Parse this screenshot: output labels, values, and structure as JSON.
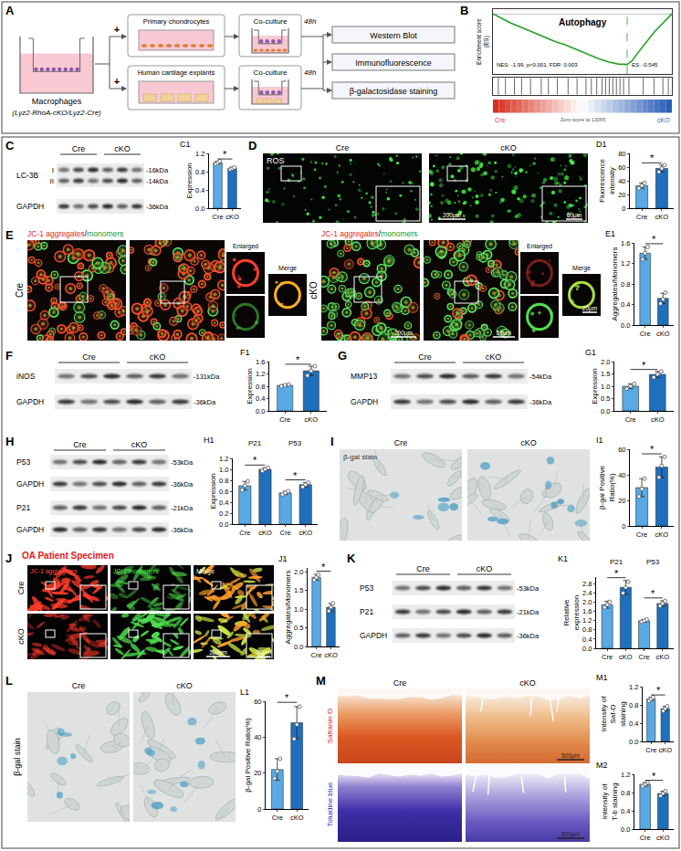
{
  "figure": {
    "A": {
      "letter": "A",
      "source": "Macrophages",
      "genotype": "(Lyz2-RhoA-cKO/Lyz2-Cre)",
      "plus": "+",
      "targets": [
        "Primary chondrocytes",
        "Human cartilage explants"
      ],
      "coculture": "Co-culture",
      "time": "48h",
      "assays": [
        "Western Blot",
        "Immunofluorescence",
        "β-galactosidase staining"
      ]
    },
    "blots": {
      "C": {
        "letter": "C",
        "groups": [
          "Cre",
          "cKO"
        ],
        "rows": [
          {
            "name": "LC-3B",
            "bands": [
              "I",
              "II"
            ],
            "kda": [
              "-16kDa",
              "-14kDa"
            ]
          },
          {
            "name": "GAPDH",
            "kda": [
              "-36kDa"
            ]
          }
        ]
      },
      "F": {
        "letter": "F",
        "groups": [
          "Cre",
          "cKO"
        ],
        "rows": [
          {
            "name": "iNOS",
            "kda": [
              "-131kDa"
            ]
          },
          {
            "name": "GAPDH",
            "kda": [
              "-36kDa"
            ]
          }
        ]
      },
      "G": {
        "letter": "G",
        "groups": [
          "Cre",
          "cKO"
        ],
        "rows": [
          {
            "name": "MMP13",
            "kda": [
              "-54kDa"
            ]
          },
          {
            "name": "GAPDH",
            "kda": [
              "-36kDa"
            ]
          }
        ]
      },
      "H": {
        "letter": "H",
        "groups": [
          "Cre",
          "cKO"
        ],
        "rows": [
          {
            "name": "P53",
            "kda": [
              "-53kDa"
            ]
          },
          {
            "name": "GAPDH",
            "kda": [
              "-36kDa"
            ]
          },
          {
            "name": "P21",
            "kda": [
              "-21kDa"
            ]
          },
          {
            "name": "GAPDH",
            "kda": [
              "-36kDa"
            ]
          }
        ]
      },
      "K": {
        "letter": "K",
        "groups": [
          "Cre",
          "cKO"
        ],
        "rows": [
          {
            "name": "P53",
            "kda": [
              "-53kDa"
            ]
          },
          {
            "name": "P21",
            "kda": [
              "-21kDa"
            ]
          },
          {
            "name": "GAPDH",
            "kda": [
              "-36kDa"
            ]
          }
        ]
      }
    },
    "images": {
      "D": {
        "letter": "D",
        "groups": [
          "Cre",
          "cKO"
        ],
        "stain": "ROS",
        "scale_bars": [
          "200μm",
          "60μm"
        ]
      },
      "E": {
        "letter": "E",
        "groups": [
          "Cre",
          "cKO"
        ],
        "title": [
          "JC-1 aggregates",
          "/",
          "monomers"
        ],
        "enlarged": "Enlarged",
        "merge": "Merge",
        "scale_bars": [
          "100μm",
          "50μm",
          "20μm"
        ]
      },
      "I": {
        "letter": "I",
        "groups": [
          "Cre",
          "cKO"
        ],
        "stain": "β-gal stain"
      },
      "J": {
        "letter": "J",
        "title": "OA Patient Specimen",
        "rows": [
          "Cre",
          "cKO"
        ],
        "columns": [
          "JC-1 aggregates",
          "JC-1 monomers",
          "Merge"
        ],
        "scale_bars": [
          "100μm",
          "30μm"
        ]
      },
      "L": {
        "letter": "L",
        "groups": [
          "Cre",
          "cKO"
        ],
        "stain": "β-gal stain"
      },
      "M": {
        "letter": "M",
        "groups": [
          "Cre",
          "cKO"
        ],
        "rows": [
          "Safranin O",
          "Toluidine blue"
        ],
        "scale_bar": "500μm"
      }
    }
  },
  "chart_data": [
    {
      "label": "B",
      "type": "line",
      "title": "Autophagy",
      "y_title": "Enrichment score (ES)",
      "x": [
        0,
        5,
        10,
        15,
        20,
        25,
        30,
        35,
        40,
        45,
        50,
        55,
        60,
        65,
        70,
        75,
        78,
        81,
        85,
        90,
        95,
        100
      ],
      "values": [
        0,
        -0.05,
        -0.1,
        -0.14,
        -0.18,
        -0.22,
        -0.26,
        -0.3,
        -0.33,
        -0.37,
        -0.41,
        -0.45,
        -0.49,
        -0.52,
        -0.54,
        -0.545,
        -0.5,
        -0.42,
        -0.32,
        -0.2,
        -0.1,
        0
      ],
      "color": "#22a022",
      "xlim": [
        0,
        100
      ],
      "ylim": [
        -0.65,
        0.05
      ],
      "tick_labels": false,
      "grid": false,
      "hits": [
        3,
        7,
        12,
        16,
        21,
        27,
        31,
        36,
        42,
        47,
        52,
        55,
        58,
        61,
        63,
        65,
        67,
        69,
        71,
        73,
        76,
        84,
        90,
        95,
        98
      ],
      "annotations": [
        "NES: -1.99, p<0.001, FDR: 0.003",
        "ES: -0.545"
      ],
      "gradient_labels": [
        "Cre",
        "cKO"
      ],
      "zero_label": "Zero score at 13065"
    },
    {
      "label": "C1",
      "type": "bar",
      "y_title": "Expression",
      "categories": [
        "Cre",
        "cKO"
      ],
      "values": [
        1.0,
        0.87
      ],
      "errors": [
        0.03,
        0.03
      ],
      "points": [
        [
          0.97,
          1.0,
          1.03
        ],
        [
          0.85,
          0.87,
          0.89
        ]
      ],
      "colors": [
        "#58a9e4",
        "#1e70bd"
      ],
      "ylim": [
        0,
        1.2
      ],
      "yticks": [
        {
          "value": 0,
          "label": "0.0"
        },
        0.4,
        0.8,
        1.2
      ],
      "grid": false,
      "significance": [
        {
          "pair": [
            0,
            1
          ],
          "text": "*"
        }
      ]
    },
    {
      "label": "D1",
      "type": "bar",
      "y_title": "Fluorescence intensity",
      "categories": [
        "Cre",
        "cKO"
      ],
      "values": [
        33,
        58
      ],
      "errors": [
        4,
        5
      ],
      "points": [
        [
          29,
          33,
          37
        ],
        [
          53,
          58,
          63
        ]
      ],
      "colors": [
        "#58a9e4",
        "#1e70bd"
      ],
      "ylim": [
        0,
        80
      ],
      "yticks": [
        0,
        20,
        40,
        60,
        80
      ],
      "grid": false,
      "significance": [
        {
          "pair": [
            0,
            1
          ],
          "text": "*"
        }
      ]
    },
    {
      "label": "E1",
      "type": "bar",
      "y_title": "Aggregates/Monomers",
      "categories": [
        "Cre",
        "cKO"
      ],
      "values": [
        1.4,
        0.52
      ],
      "errors": [
        0.12,
        0.1
      ],
      "points": [
        [
          1.28,
          1.4,
          1.52
        ],
        [
          0.42,
          0.5,
          0.63
        ]
      ],
      "colors": [
        "#58a9e4",
        "#1e70bd"
      ],
      "ylim": [
        0,
        1.6
      ],
      "yticks": [
        {
          "value": 0,
          "label": "0.0"
        },
        0.4,
        0.8,
        1.2,
        1.6
      ],
      "grid": false,
      "significance": [
        {
          "pair": [
            0,
            1
          ],
          "text": "*"
        }
      ]
    },
    {
      "label": "F1",
      "type": "bar",
      "y_title": "Expression",
      "categories": [
        "Cre",
        "cKO"
      ],
      "values": [
        0.83,
        1.3
      ],
      "errors": [
        0.03,
        0.15
      ],
      "points": [
        [
          0.8,
          0.83,
          0.86
        ],
        [
          1.15,
          1.3,
          1.45
        ]
      ],
      "colors": [
        "#58a9e4",
        "#1e70bd"
      ],
      "ylim": [
        0,
        1.6
      ],
      "yticks": [
        {
          "value": 0,
          "label": "0.0"
        },
        0.4,
        0.8,
        1.2,
        1.6
      ],
      "grid": false,
      "significance": [
        {
          "pair": [
            0,
            1
          ],
          "text": "*"
        }
      ]
    },
    {
      "label": "G1",
      "type": "bar",
      "y_title": "Expression",
      "categories": [
        "Cre",
        "cKO"
      ],
      "values": [
        1.0,
        1.48
      ],
      "errors": [
        0.1,
        0.12
      ],
      "points": [
        [
          0.9,
          1.0,
          1.1
        ],
        [
          1.36,
          1.48,
          1.6
        ]
      ],
      "colors": [
        "#58a9e4",
        "#1e70bd"
      ],
      "ylim": [
        0,
        2.0
      ],
      "yticks": [
        {
          "value": 0,
          "label": "0.0"
        },
        0.5,
        {
          "value": 1,
          "label": "1.0"
        },
        1.5,
        {
          "value": 2,
          "label": "2.0"
        }
      ],
      "grid": false,
      "significance": [
        {
          "pair": [
            0,
            1
          ],
          "text": "*"
        }
      ]
    },
    {
      "label": "H1",
      "type": "bar",
      "y_title": "Expression",
      "categories": [
        "Cre",
        "cKO",
        "Cre",
        "cKO"
      ],
      "values": [
        0.7,
        1.0,
        0.57,
        0.72
      ],
      "errors": [
        0.08,
        0.03,
        0.03,
        0.04
      ],
      "points": [
        [
          0.62,
          0.7,
          0.78
        ],
        [
          0.97,
          1.0,
          1.03
        ],
        [
          0.54,
          0.57,
          0.6
        ],
        [
          0.68,
          0.72,
          0.76
        ]
      ],
      "colors": [
        "#58a9e4",
        "#1e70bd",
        "#58a9e4",
        "#1e70bd"
      ],
      "ylim": [
        0,
        1.2
      ],
      "yticks": [
        {
          "value": 0,
          "label": "0.0"
        },
        0.2,
        0.4,
        0.6,
        0.8,
        {
          "value": 1,
          "label": "1.0"
        },
        1.2
      ],
      "grid": false,
      "groups": [
        {
          "name": "P21",
          "members": [
            0,
            1
          ]
        },
        {
          "name": "P53",
          "members": [
            2,
            3
          ]
        }
      ],
      "significance": [
        {
          "pair": [
            0,
            1
          ],
          "text": "*"
        },
        {
          "pair": [
            2,
            3
          ],
          "text": "*"
        }
      ]
    },
    {
      "label": "I1",
      "type": "bar",
      "y_title": "β-gal Positive Ratio(%)",
      "categories": [
        "Cre",
        "cKO"
      ],
      "values": [
        30,
        46
      ],
      "errors": [
        7,
        8
      ],
      "points": [
        [
          23,
          29,
          37
        ],
        [
          38,
          47,
          54
        ]
      ],
      "colors": [
        "#58a9e4",
        "#1e70bd"
      ],
      "ylim": [
        0,
        60
      ],
      "yticks": [
        0,
        20,
        40,
        60
      ],
      "grid": false,
      "significance": [
        {
          "pair": [
            0,
            1
          ],
          "text": "*"
        }
      ]
    },
    {
      "label": "J1",
      "type": "bar",
      "y_title": "Aggregates/Monomers",
      "categories": [
        "Cre",
        "cKO"
      ],
      "values": [
        1.85,
        1.05
      ],
      "errors": [
        0.08,
        0.1
      ],
      "points": [
        [
          1.78,
          1.85,
          1.92
        ],
        [
          0.95,
          1.05,
          1.15
        ]
      ],
      "colors": [
        "#58a9e4",
        "#1e70bd"
      ],
      "ylim": [
        0,
        2.1
      ],
      "yticks": [
        {
          "value": 0,
          "label": "0.0"
        },
        0.5,
        {
          "value": 1,
          "label": "1.0"
        },
        1.5,
        {
          "value": 2,
          "label": "2.0"
        }
      ],
      "grid": false,
      "significance": [
        {
          "pair": [
            0,
            1
          ],
          "text": "*"
        }
      ]
    },
    {
      "label": "K1",
      "type": "bar",
      "y_title": "Relative expression",
      "categories": [
        "Cre",
        "cKO",
        "Cre",
        "cKO"
      ],
      "values": [
        1.9,
        2.65,
        1.2,
        1.95
      ],
      "errors": [
        0.15,
        0.3,
        0.05,
        0.12
      ],
      "points": [
        [
          1.78,
          1.9,
          2.02
        ],
        [
          2.4,
          2.65,
          2.9
        ],
        [
          1.15,
          1.2,
          1.25
        ],
        [
          1.85,
          1.95,
          2.06
        ]
      ],
      "colors": [
        "#58a9e4",
        "#1e70bd",
        "#58a9e4",
        "#1e70bd"
      ],
      "ylim": [
        0,
        3.1
      ],
      "yticks": [
        {
          "value": 0,
          "label": "0.0"
        },
        0.4,
        0.8,
        1.2,
        1.6,
        {
          "value": 2,
          "label": "2.0"
        },
        2.4,
        2.8
      ],
      "grid": false,
      "groups": [
        {
          "name": "P21",
          "members": [
            0,
            1
          ]
        },
        {
          "name": "P53",
          "members": [
            2,
            3
          ]
        }
      ],
      "significance": [
        {
          "pair": [
            0,
            1
          ],
          "text": "*"
        },
        {
          "pair": [
            2,
            3
          ],
          "text": "*"
        }
      ]
    },
    {
      "label": "L1",
      "type": "bar",
      "y_title": "β-gal Positive Ratio(%)",
      "categories": [
        "Cre",
        "cKO"
      ],
      "values": [
        22,
        48
      ],
      "errors": [
        6,
        9
      ],
      "points": [
        [
          17,
          21,
          28
        ],
        [
          39,
          47,
          57
        ]
      ],
      "colors": [
        "#58a9e4",
        "#1e70bd"
      ],
      "ylim": [
        0,
        60
      ],
      "yticks": [
        0,
        20,
        40,
        60
      ],
      "grid": false,
      "significance": [
        {
          "pair": [
            0,
            1
          ],
          "text": "*"
        }
      ]
    },
    {
      "label": "M1",
      "type": "bar",
      "y_title": "Intensity of Saf-O staining",
      "categories": [
        "Cre",
        "cKO"
      ],
      "values": [
        0.93,
        0.72
      ],
      "errors": [
        0.04,
        0.05
      ],
      "points": [
        [
          0.89,
          0.93,
          0.97
        ],
        [
          0.67,
          0.72,
          0.77
        ]
      ],
      "colors": [
        "#58a9e4",
        "#1e70bd"
      ],
      "ylim": [
        0,
        1.2
      ],
      "yticks": [
        {
          "value": 0,
          "label": "0.0"
        },
        0.4,
        0.8,
        1.2
      ],
      "grid": false,
      "significance": [
        {
          "pair": [
            0,
            1
          ],
          "text": "*"
        }
      ]
    },
    {
      "label": "M2",
      "type": "bar",
      "y_title": "Intensity of T-b staining",
      "categories": [
        "Cre",
        "cKO"
      ],
      "values": [
        0.98,
        0.78
      ],
      "errors": [
        0.04,
        0.05
      ],
      "points": [
        [
          0.94,
          0.98,
          1.02
        ],
        [
          0.73,
          0.78,
          0.83
        ]
      ],
      "colors": [
        "#58a9e4",
        "#1e70bd"
      ],
      "ylim": [
        0,
        1.2
      ],
      "yticks": [
        {
          "value": 0,
          "label": "0.0"
        },
        0.4,
        0.8,
        1.2
      ],
      "grid": false,
      "significance": [
        {
          "pair": [
            0,
            1
          ],
          "text": "*"
        }
      ]
    }
  ]
}
